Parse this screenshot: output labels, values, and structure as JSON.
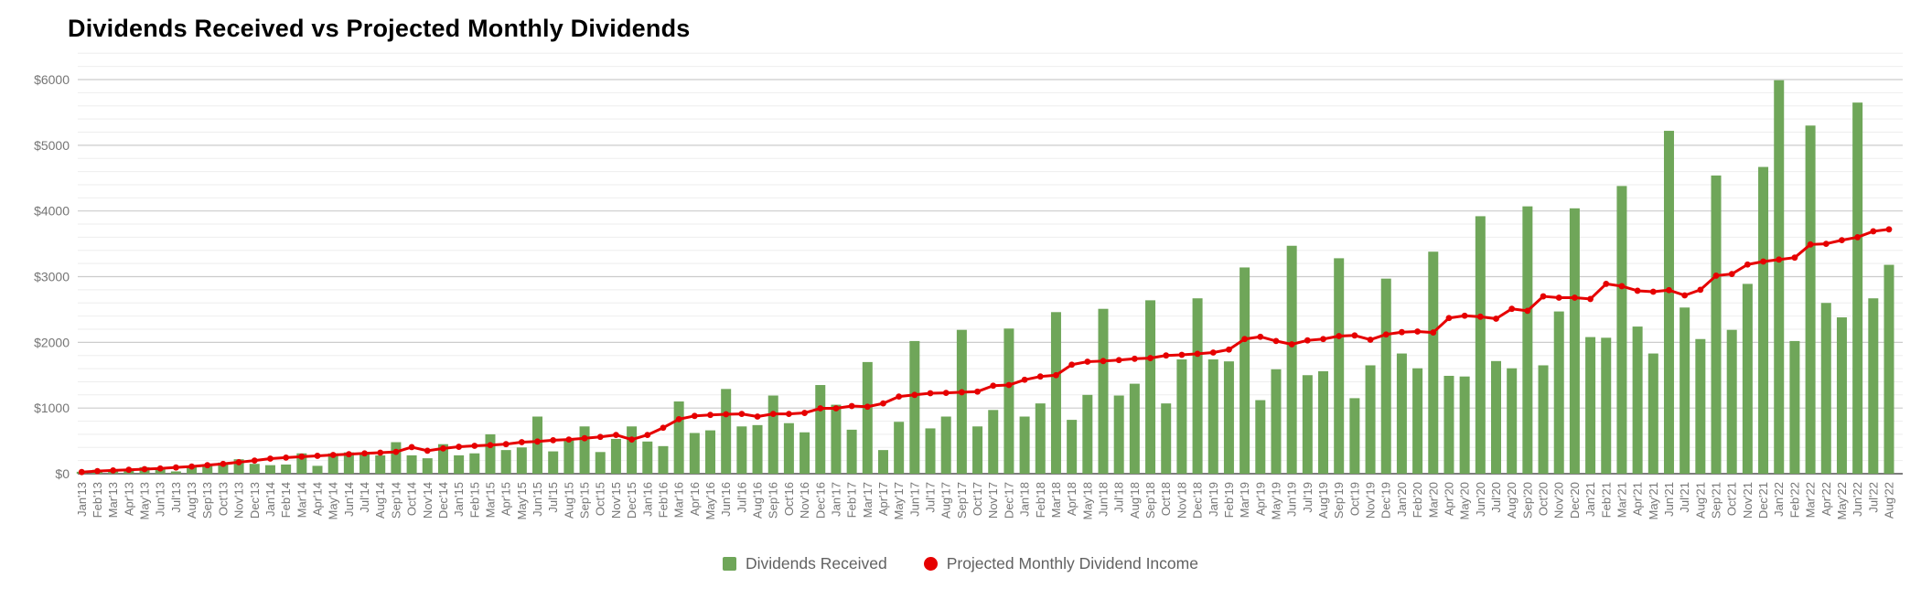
{
  "chart": {
    "title": "Dividends Received vs Projected Monthly Dividends"
  },
  "legend": [
    {
      "label": "Dividends Received",
      "marker": "green-square"
    },
    {
      "label": "Projected Monthly Dividend Income",
      "marker": "red-circle"
    }
  ],
  "colors": {
    "bar_green": "#6fa659",
    "line_red": "#e60000",
    "axis_text": "#757575",
    "major_gridline": "#cccccc",
    "minor_gridline": "#eeeeee",
    "baseline": "#545454",
    "title_text": "#000000"
  },
  "chart_data": {
    "type": "combo-bar-line",
    "title": "Dividends Received vs Projected Monthly Dividends",
    "xlabel": "",
    "ylabel": "",
    "ylim": [
      0,
      6400
    ],
    "y_major_step": 1000,
    "y_minor_step": 200,
    "grid": true,
    "legend_position": "bottom-center",
    "y_tick_labels": [
      "$0",
      "$1000",
      "$2000",
      "$3000",
      "$4000",
      "$5000",
      "$6000"
    ],
    "categories": [
      "Jan'13",
      "Feb'13",
      "Mar'13",
      "Apr'13",
      "May'13",
      "Jun'13",
      "Jul'13",
      "Aug'13",
      "Sep'13",
      "Oct'13",
      "Nov'13",
      "Dec'13",
      "Jan'14",
      "Feb'14",
      "Mar'14",
      "Apr'14",
      "May'14",
      "Jun'14",
      "Jul'14",
      "Aug'14",
      "Sep'14",
      "Oct'14",
      "Nov'14",
      "Dec'14",
      "Jan'15",
      "Feb'15",
      "Mar'15",
      "Apr'15",
      "May'15",
      "Jun'15",
      "Jul'15",
      "Aug'15",
      "Sep'15",
      "Oct'15",
      "Nov'15",
      "Dec'15",
      "Jan'16",
      "Feb'16",
      "Mar'16",
      "Apr'16",
      "May'16",
      "Jun'16",
      "Jul'16",
      "Aug'16",
      "Sep'16",
      "Oct'16",
      "Nov'16",
      "Dec'16",
      "Jan'17",
      "Feb'17",
      "Mar'17",
      "Apr'17",
      "May'17",
      "Jun'17",
      "Jul'17",
      "Aug'17",
      "Sep'17",
      "Oct'17",
      "Nov'17",
      "Dec'17",
      "Jan'18",
      "Feb'18",
      "Mar'18",
      "Apr'18",
      "May'18",
      "Jun'18",
      "Jul'18",
      "Aug'18",
      "Sep'18",
      "Oct'18",
      "Nov'18",
      "Dec'18",
      "Jan'19",
      "Feb'19",
      "Mar'19",
      "Apr'19",
      "May'19",
      "Jun'19",
      "Jul'19",
      "Aug'19",
      "Sep'19",
      "Oct'19",
      "Nov'19",
      "Dec'19",
      "Jan'20",
      "Feb'20",
      "Mar'20",
      "Apr'20",
      "May'20",
      "Jun'20",
      "Jul'20",
      "Aug'20",
      "Sep'20",
      "Oct'20",
      "Nov'20",
      "Dec'20",
      "Jan'21",
      "Feb'21",
      "Mar'21",
      "Apr'21",
      "May'21",
      "Jun'21",
      "Jul'21",
      "Aug'21",
      "Sep'21",
      "Oct'21",
      "Nov'21",
      "Dec'21",
      "Jan'22",
      "Feb'22",
      "Mar'22",
      "Apr'22",
      "May'22",
      "Jun'22",
      "Jul'22",
      "Aug'22"
    ],
    "series": [
      {
        "name": "Dividends Received",
        "type": "bar",
        "color": "#6fa659",
        "values": [
          30,
          60,
          55,
          70,
          100,
          90,
          35,
          110,
          145,
          170,
          220,
          150,
          130,
          140,
          310,
          120,
          310,
          325,
          310,
          280,
          480,
          280,
          235,
          450,
          280,
          310,
          600,
          360,
          400,
          870,
          340,
          520,
          720,
          330,
          530,
          720,
          490,
          420,
          1100,
          620,
          660,
          1290,
          720,
          740,
          1190,
          770,
          630,
          1350,
          1050,
          670,
          1700,
          360,
          790,
          2020,
          690,
          870,
          2190,
          720,
          970,
          2210,
          870,
          1070,
          2460,
          820,
          1200,
          2510,
          1190,
          1370,
          2640,
          1070,
          1740,
          2670,
          1740,
          1710,
          3140,
          1120,
          1590,
          3470,
          1500,
          1560,
          3280,
          1150,
          1650,
          2970,
          1830,
          1605,
          3380,
          1490,
          1480,
          3920,
          1715,
          1605,
          4070,
          1650,
          2470,
          4040,
          2080,
          2070,
          4380,
          2240,
          1830,
          5220,
          2530,
          2050,
          4540,
          2190,
          2890,
          4670,
          5990,
          2020,
          5300,
          2600,
          2380,
          5650,
          2670,
          3180
        ]
      },
      {
        "name": "Projected Monthly Dividend Income",
        "type": "line",
        "color": "#e60000",
        "values": [
          25,
          40,
          50,
          60,
          70,
          80,
          95,
          110,
          130,
          150,
          175,
          200,
          230,
          245,
          260,
          272,
          285,
          297,
          310,
          320,
          332,
          405,
          350,
          385,
          410,
          425,
          435,
          450,
          480,
          490,
          510,
          520,
          540,
          560,
          590,
          520,
          590,
          700,
          830,
          880,
          895,
          905,
          910,
          870,
          910,
          910,
          925,
          995,
          995,
          1030,
          1020,
          1070,
          1175,
          1200,
          1225,
          1230,
          1240,
          1250,
          1340,
          1350,
          1430,
          1480,
          1500,
          1660,
          1705,
          1715,
          1730,
          1750,
          1760,
          1800,
          1810,
          1825,
          1845,
          1890,
          2050,
          2085,
          2020,
          1970,
          2030,
          2050,
          2095,
          2105,
          2040,
          2120,
          2155,
          2165,
          2150,
          2370,
          2405,
          2390,
          2360,
          2510,
          2480,
          2700,
          2680,
          2680,
          2660,
          2890,
          2855,
          2785,
          2770,
          2795,
          2715,
          2800,
          3015,
          3040,
          3185,
          3230,
          3260,
          3290,
          3490,
          3500,
          3555,
          3600,
          3690,
          3720
        ]
      }
    ]
  }
}
